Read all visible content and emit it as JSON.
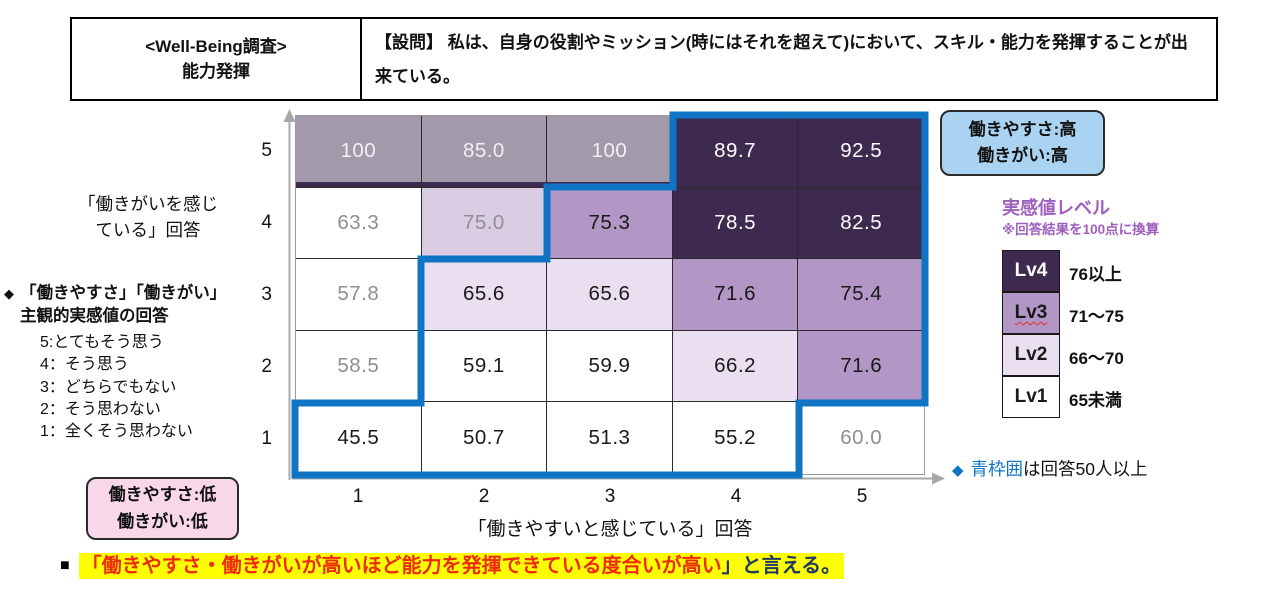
{
  "header": {
    "left_line1": "<Well-Being調査>",
    "left_line2": "能力発揮",
    "question": "【設問】 私は、自身の役割やミッション(時にはそれを超えて)において、スキル・能力を発揮することが出来ている。"
  },
  "chart_data": {
    "type": "heatmap",
    "xlabel": "「働きやすいと感じている」回答",
    "ylabel": "「働きがいを感じている」回答",
    "x_ticks": [
      "1",
      "2",
      "3",
      "4",
      "5"
    ],
    "y_ticks_top_to_bottom": [
      "5",
      "4",
      "3",
      "2",
      "1"
    ],
    "rows_top_to_bottom": [
      {
        "y": "5",
        "values": [
          100,
          85.0,
          100,
          89.7,
          92.5
        ],
        "display": [
          "100",
          "85.0",
          "100",
          "89.7",
          "92.5"
        ],
        "low_sample": [
          true,
          true,
          true,
          false,
          false
        ]
      },
      {
        "y": "4",
        "values": [
          63.3,
          75.0,
          75.3,
          78.5,
          82.5
        ],
        "display": [
          "63.3",
          "75.0",
          "75.3",
          "78.5",
          "82.5"
        ],
        "low_sample": [
          true,
          true,
          false,
          false,
          false
        ]
      },
      {
        "y": "3",
        "values": [
          57.8,
          65.6,
          65.6,
          71.6,
          75.4
        ],
        "display": [
          "57.8",
          "65.6",
          "65.6",
          "71.6",
          "75.4"
        ],
        "low_sample": [
          true,
          false,
          false,
          false,
          false
        ]
      },
      {
        "y": "2",
        "values": [
          58.5,
          59.1,
          59.9,
          66.2,
          71.6
        ],
        "display": [
          "58.5",
          "59.1",
          "59.9",
          "66.2",
          "71.6"
        ],
        "low_sample": [
          true,
          false,
          false,
          false,
          false
        ]
      },
      {
        "y": "1",
        "values": [
          45.5,
          50.7,
          51.3,
          55.2,
          60.0
        ],
        "display": [
          "45.5",
          "50.7",
          "51.3",
          "55.2",
          "60.0"
        ],
        "low_sample": [
          false,
          false,
          false,
          false,
          true
        ]
      }
    ],
    "levels": [
      {
        "label": "Lv4",
        "range": "76以上",
        "min": 76,
        "color": "#3E2A4E",
        "text": "#FFFFFF",
        "misspell_underline": false
      },
      {
        "label": "Lv3",
        "range": "71～75",
        "min": 71,
        "color": "#B296C5",
        "text": "#1A1A1A",
        "misspell_underline": true
      },
      {
        "label": "Lv2",
        "range": "66～70",
        "min": 66,
        "color": "#E9DFF0",
        "text": "#1A1A1A",
        "misspell_underline": false
      },
      {
        "label": "Lv1",
        "range": "65未満",
        "min": 0,
        "color": "#FFFFFF",
        "text": "#1A1A1A",
        "misspell_underline": false
      }
    ],
    "blue_outline": {
      "color": "#1074C4",
      "meaning": "回答50人以上"
    },
    "legend_position": "right"
  },
  "annotations": {
    "y_axis_title": "「働きがいを感じ\nている」回答",
    "subjective_diamond": "◆",
    "subjective_heading": "「働きやすさ」「働きがい」\n主観的実感値の回答",
    "scale_items": [
      "5:とてもそう思う",
      "4：そう思う",
      "3：どちらでもない",
      "2：そう思わない",
      "1：全くそう思わない"
    ],
    "low_box": "働きやすさ:低\n働きがい:低",
    "high_box": "働きやすさ:高\n働きがい:高",
    "legend_title": "実感値レベル",
    "legend_subtitle": "※回答結果を100点に換算",
    "blue_note_diamond": "◆",
    "blue_note_blue": "青枠囲",
    "blue_note_rest": "は回答50人以上",
    "conclusion_bullet": "■",
    "conclusion_red": "「働きやすさ・働きがいが高いほど能力を発揮できている度合いが高い",
    "conclusion_navy": "」と言える。"
  },
  "colors": {
    "blue_frame": "#1074C4",
    "legend_purple": "#9E5FBE",
    "low_box_pink": "#F8D7E8",
    "high_box_blue": "#A9D3F1",
    "highlight_yellow": "#FFFF00",
    "conclusion_red": "#EE2B0B",
    "conclusion_navy": "#203864",
    "lv4": "#3E2A4E",
    "lv3": "#B296C5",
    "lv2": "#E9DFF0",
    "lv1": "#FFFFFF"
  }
}
